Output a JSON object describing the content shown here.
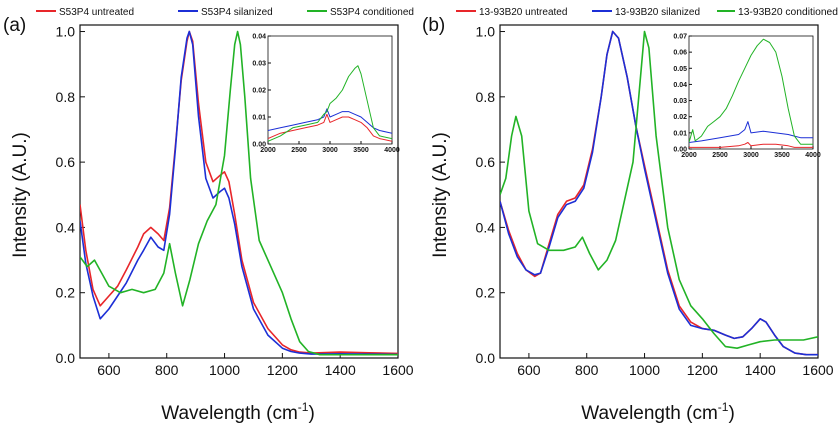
{
  "chart_data": [
    {
      "type": "line",
      "panel_label": "(a)",
      "xlabel": "Wavelength (cm",
      "xlabel_sup": "-1",
      "xlabel_end": ")",
      "ylabel": "Intensity (A.U.)",
      "xlim": [
        500,
        1600
      ],
      "ylim": [
        0,
        1.02
      ],
      "xticks": [
        "600",
        "800",
        "1000",
        "1200",
        "1400",
        "1600"
      ],
      "yticks": [
        "0.0",
        "0.2",
        "0.4",
        "0.6",
        "0.8",
        "1.0"
      ],
      "legend_position": "top",
      "series": [
        {
          "name": "S53P4 untreated",
          "color": "#e8262a",
          "x": [
            500,
            520,
            545,
            570,
            600,
            630,
            660,
            700,
            720,
            745,
            770,
            790,
            810,
            830,
            850,
            870,
            878,
            890,
            910,
            935,
            960,
            985,
            1000,
            1015,
            1035,
            1060,
            1100,
            1150,
            1200,
            1230,
            1260,
            1300,
            1400,
            1500,
            1600
          ],
          "y": [
            0.47,
            0.33,
            0.21,
            0.16,
            0.19,
            0.22,
            0.27,
            0.34,
            0.38,
            0.4,
            0.38,
            0.36,
            0.46,
            0.65,
            0.85,
            0.97,
            1.0,
            0.97,
            0.78,
            0.6,
            0.54,
            0.56,
            0.57,
            0.54,
            0.44,
            0.3,
            0.17,
            0.09,
            0.04,
            0.025,
            0.018,
            0.015,
            0.018,
            0.016,
            0.014
          ]
        },
        {
          "name": "S53P4 silanized",
          "color": "#1c2fd6",
          "x": [
            500,
            520,
            545,
            570,
            600,
            630,
            660,
            700,
            720,
            745,
            770,
            790,
            810,
            830,
            850,
            870,
            878,
            890,
            910,
            935,
            960,
            985,
            1000,
            1015,
            1035,
            1060,
            1100,
            1150,
            1200,
            1230,
            1260,
            1300,
            1400,
            1500,
            1600
          ],
          "y": [
            0.42,
            0.29,
            0.19,
            0.12,
            0.15,
            0.19,
            0.23,
            0.3,
            0.33,
            0.37,
            0.34,
            0.33,
            0.44,
            0.64,
            0.86,
            0.98,
            1.0,
            0.96,
            0.74,
            0.55,
            0.49,
            0.51,
            0.52,
            0.49,
            0.41,
            0.28,
            0.15,
            0.07,
            0.03,
            0.02,
            0.015,
            0.012,
            0.013,
            0.012,
            0.011
          ]
        },
        {
          "name": "S53P4 conditioned",
          "color": "#22b326",
          "x": [
            500,
            525,
            550,
            575,
            600,
            640,
            680,
            720,
            760,
            790,
            810,
            830,
            855,
            880,
            910,
            940,
            970,
            1000,
            1020,
            1035,
            1045,
            1055,
            1070,
            1090,
            1120,
            1160,
            1200,
            1230,
            1260,
            1290,
            1330,
            1400,
            1500,
            1600
          ],
          "y": [
            0.31,
            0.28,
            0.3,
            0.26,
            0.22,
            0.2,
            0.21,
            0.2,
            0.21,
            0.26,
            0.35,
            0.26,
            0.16,
            0.24,
            0.35,
            0.42,
            0.47,
            0.62,
            0.82,
            0.96,
            1.0,
            0.96,
            0.8,
            0.55,
            0.36,
            0.28,
            0.2,
            0.12,
            0.05,
            0.02,
            0.01,
            0.01,
            0.01,
            0.01
          ]
        }
      ],
      "inset": {
        "xlim": [
          2000,
          4000
        ],
        "ylim": [
          0,
          0.04
        ],
        "xticks": [
          "2000",
          "2500",
          "3000",
          "3500",
          "4000"
        ],
        "yticks": [
          "0.00",
          "0.01",
          "0.02",
          "0.03",
          "0.04"
        ],
        "series": [
          {
            "name": "S53P4 untreated",
            "color": "#e8262a",
            "x": [
              2000,
              2200,
              2400,
              2600,
              2800,
              2900,
              2950,
              3000,
              3100,
              3200,
              3300,
              3400,
              3500,
              3600,
              3700,
              3800,
              4000
            ],
            "y": [
              0.002,
              0.004,
              0.005,
              0.006,
              0.007,
              0.008,
              0.011,
              0.008,
              0.009,
              0.01,
              0.01,
              0.009,
              0.008,
              0.006,
              0.003,
              0.002,
              0.001
            ]
          },
          {
            "name": "S53P4 silanized",
            "color": "#1c2fd6",
            "x": [
              2000,
              2200,
              2400,
              2600,
              2800,
              2900,
              2950,
              3000,
              3100,
              3200,
              3300,
              3400,
              3500,
              3600,
              3700,
              3800,
              4000
            ],
            "y": [
              0.005,
              0.006,
              0.007,
              0.008,
              0.009,
              0.01,
              0.013,
              0.01,
              0.011,
              0.012,
              0.012,
              0.011,
              0.01,
              0.008,
              0.006,
              0.005,
              0.004
            ]
          },
          {
            "name": "S53P4 conditioned",
            "color": "#22b326",
            "x": [
              2000,
              2200,
              2400,
              2600,
              2800,
              2900,
              2950,
              3000,
              3100,
              3200,
              3300,
              3400,
              3450,
              3500,
              3600,
              3700,
              3800,
              4000
            ],
            "y": [
              0.001,
              0.003,
              0.006,
              0.007,
              0.008,
              0.011,
              0.012,
              0.015,
              0.017,
              0.02,
              0.025,
              0.028,
              0.029,
              0.026,
              0.016,
              0.006,
              0.003,
              0.002
            ]
          }
        ]
      }
    },
    {
      "type": "line",
      "panel_label": "(b)",
      "xlabel": "Wavelength (cm",
      "xlabel_sup": "-1",
      "xlabel_end": ")",
      "ylabel": "Intensity (A.U.)",
      "xlim": [
        500,
        1600
      ],
      "ylim": [
        0,
        1.02
      ],
      "xticks": [
        "600",
        "800",
        "1000",
        "1200",
        "1400",
        "1600"
      ],
      "yticks": [
        "0.0",
        "0.2",
        "0.4",
        "0.6",
        "0.8",
        "1.0"
      ],
      "legend_position": "top",
      "series": [
        {
          "name": "13-93B20 untreated",
          "color": "#e8262a",
          "x": [
            500,
            530,
            560,
            590,
            620,
            640,
            670,
            700,
            730,
            760,
            790,
            820,
            850,
            870,
            890,
            910,
            940,
            970,
            1000,
            1040,
            1080,
            1120,
            1160,
            1200,
            1240,
            1280,
            1310,
            1340,
            1370,
            1400,
            1420,
            1450,
            1480,
            1520,
            1560,
            1600
          ],
          "y": [
            0.48,
            0.39,
            0.32,
            0.27,
            0.25,
            0.26,
            0.35,
            0.44,
            0.48,
            0.49,
            0.53,
            0.64,
            0.8,
            0.93,
            1.0,
            0.98,
            0.86,
            0.71,
            0.59,
            0.43,
            0.27,
            0.16,
            0.11,
            0.09,
            0.085,
            0.07,
            0.06,
            0.065,
            0.09,
            0.12,
            0.11,
            0.07,
            0.035,
            0.015,
            0.01,
            0.01
          ]
        },
        {
          "name": "13-93B20 silanized",
          "color": "#1c2fd6",
          "x": [
            500,
            530,
            560,
            590,
            620,
            640,
            670,
            700,
            730,
            760,
            790,
            820,
            850,
            870,
            890,
            910,
            940,
            970,
            1000,
            1040,
            1080,
            1120,
            1160,
            1200,
            1240,
            1280,
            1310,
            1340,
            1370,
            1400,
            1420,
            1450,
            1480,
            1520,
            1560,
            1600
          ],
          "y": [
            0.48,
            0.38,
            0.31,
            0.27,
            0.255,
            0.26,
            0.34,
            0.43,
            0.47,
            0.48,
            0.52,
            0.63,
            0.8,
            0.93,
            1.0,
            0.98,
            0.86,
            0.71,
            0.58,
            0.42,
            0.26,
            0.15,
            0.1,
            0.09,
            0.085,
            0.07,
            0.06,
            0.065,
            0.09,
            0.12,
            0.11,
            0.07,
            0.035,
            0.015,
            0.01,
            0.01
          ]
        },
        {
          "name": "13-93B20 conditioned",
          "color": "#22b326",
          "x": [
            500,
            520,
            540,
            555,
            575,
            600,
            630,
            670,
            720,
            760,
            785,
            810,
            840,
            870,
            900,
            930,
            960,
            985,
            1000,
            1015,
            1040,
            1080,
            1120,
            1160,
            1200,
            1240,
            1280,
            1320,
            1360,
            1400,
            1450,
            1500,
            1550,
            1600
          ],
          "y": [
            0.5,
            0.55,
            0.68,
            0.74,
            0.68,
            0.45,
            0.35,
            0.33,
            0.33,
            0.34,
            0.37,
            0.32,
            0.27,
            0.3,
            0.36,
            0.48,
            0.6,
            0.85,
            1.0,
            0.95,
            0.68,
            0.4,
            0.24,
            0.16,
            0.12,
            0.075,
            0.035,
            0.03,
            0.04,
            0.05,
            0.055,
            0.055,
            0.055,
            0.065
          ]
        }
      ],
      "inset": {
        "xlim": [
          2000,
          4000
        ],
        "ylim": [
          0,
          0.07
        ],
        "xticks": [
          "2000",
          "2500",
          "3000",
          "3500",
          "4000"
        ],
        "yticks": [
          "0.00",
          "0.01",
          "0.02",
          "0.03",
          "0.04",
          "0.05",
          "0.06",
          "0.07"
        ],
        "series": [
          {
            "name": "13-93B20 untreated",
            "color": "#e8262a",
            "x": [
              2000,
              2200,
              2500,
              2800,
              2900,
              2950,
              3000,
              3200,
              3400,
              3600,
              3700,
              3800,
              4000
            ],
            "y": [
              0.001,
              0.001,
              0.001,
              0.002,
              0.003,
              0.004,
              0.002,
              0.003,
              0.003,
              0.002,
              0.001,
              0.001,
              0.001
            ]
          },
          {
            "name": "13-93B20 silanized",
            "color": "#1c2fd6",
            "x": [
              2000,
              2200,
              2500,
              2800,
              2900,
              2950,
              3000,
              3200,
              3400,
              3600,
              3700,
              3800,
              4000
            ],
            "y": [
              0.004,
              0.005,
              0.007,
              0.009,
              0.012,
              0.017,
              0.01,
              0.011,
              0.01,
              0.009,
              0.008,
              0.007,
              0.007
            ]
          },
          {
            "name": "13-93B20 conditioned",
            "color": "#22b326",
            "x": [
              2000,
              2060,
              2100,
              2200,
              2300,
              2400,
              2500,
              2600,
              2700,
              2800,
              2900,
              3000,
              3100,
              3200,
              3300,
              3400,
              3500,
              3600,
              3700,
              3800,
              4000
            ],
            "y": [
              0.004,
              0.012,
              0.005,
              0.008,
              0.014,
              0.017,
              0.02,
              0.025,
              0.033,
              0.042,
              0.05,
              0.058,
              0.064,
              0.068,
              0.066,
              0.06,
              0.045,
              0.025,
              0.008,
              0.003,
              0.003
            ]
          }
        ]
      }
    }
  ]
}
